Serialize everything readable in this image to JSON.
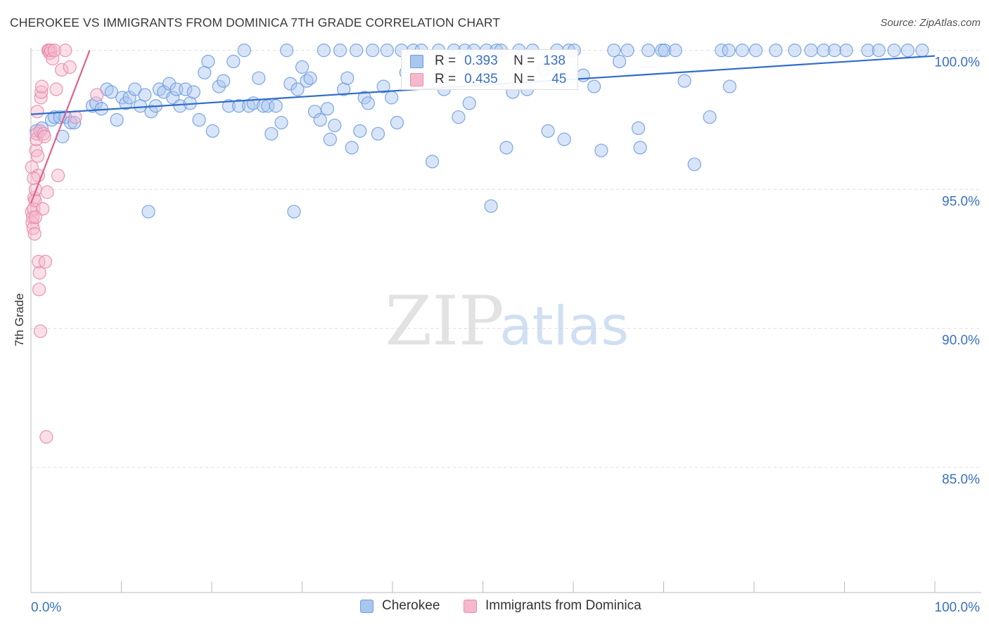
{
  "title": "CHEROKEE VS IMMIGRANTS FROM DOMINICA 7TH GRADE CORRELATION CHART",
  "source": "Source: ZipAtlas.com",
  "watermark": {
    "zip": "ZIP",
    "atlas": "atlas"
  },
  "colors": {
    "cherokee_fill": "#a9c6ef",
    "cherokee_stroke": "#6f9ce0",
    "cherokee_line": "#2f6cca",
    "dominica_fill": "#f5b8cc",
    "dominica_stroke": "#e88aaa",
    "dominica_line": "#e0608c",
    "axis_text": "#3a70c2",
    "grid": "#dcdcdc"
  },
  "stats": {
    "cherokee": {
      "r_label": "R =",
      "r": "0.393",
      "n_label": "N =",
      "n": "138"
    },
    "dominica": {
      "r_label": "R =",
      "r": "0.435",
      "n_label": "N =",
      "n": "45"
    }
  },
  "legend": {
    "cherokee": "Cherokee",
    "dominica": "Immigrants from Dominica"
  },
  "chart_data": {
    "type": "scatter",
    "title": "CHEROKEE VS IMMIGRANTS FROM DOMINICA 7TH GRADE CORRELATION CHART",
    "xlabel": "",
    "ylabel": "7th Grade",
    "xlim": [
      0,
      100
    ],
    "ylim": [
      80.5,
      100.8
    ],
    "x_tick_labels": [
      "0.0%",
      "100.0%"
    ],
    "y_ticks": [
      85,
      90,
      95,
      100
    ],
    "y_tick_labels": [
      "85.0%",
      "90.0%",
      "95.0%",
      "100.0%"
    ],
    "grid": true,
    "legend_position": "bottom-center",
    "series": [
      {
        "name": "Cherokee",
        "trend": {
          "x": [
            0,
            100
          ],
          "y": [
            97.7,
            99.8
          ]
        },
        "points": [
          [
            0.6,
            97.1
          ],
          [
            1.2,
            97.2
          ],
          [
            2.3,
            97.5
          ],
          [
            2.6,
            97.6
          ],
          [
            3.2,
            97.6
          ],
          [
            3.5,
            96.9
          ],
          [
            3.8,
            97.6
          ],
          [
            4.4,
            97.4
          ],
          [
            4.8,
            97.4
          ],
          [
            6.8,
            98.0
          ],
          [
            7.2,
            98.1
          ],
          [
            7.8,
            97.9
          ],
          [
            8.4,
            98.6
          ],
          [
            8.9,
            98.5
          ],
          [
            9.5,
            97.5
          ],
          [
            10.1,
            98.3
          ],
          [
            10.5,
            98.1
          ],
          [
            10.9,
            98.3
          ],
          [
            11.5,
            98.6
          ],
          [
            12.1,
            98.0
          ],
          [
            12.6,
            98.4
          ],
          [
            13.0,
            94.2
          ],
          [
            13.3,
            97.8
          ],
          [
            13.8,
            98.0
          ],
          [
            14.2,
            98.6
          ],
          [
            14.7,
            98.5
          ],
          [
            15.3,
            98.8
          ],
          [
            15.7,
            98.3
          ],
          [
            16.1,
            98.6
          ],
          [
            16.5,
            98.0
          ],
          [
            17.1,
            98.6
          ],
          [
            17.6,
            98.1
          ],
          [
            18.0,
            98.5
          ],
          [
            18.6,
            97.5
          ],
          [
            19.2,
            99.2
          ],
          [
            19.6,
            99.6
          ],
          [
            20.1,
            97.1
          ],
          [
            20.8,
            98.7
          ],
          [
            21.3,
            98.9
          ],
          [
            21.9,
            98.0
          ],
          [
            22.4,
            99.6
          ],
          [
            23.0,
            98.0
          ],
          [
            23.6,
            100.0
          ],
          [
            24.1,
            98.0
          ],
          [
            24.6,
            98.1
          ],
          [
            25.2,
            99.0
          ],
          [
            25.7,
            98.0
          ],
          [
            26.2,
            98.0
          ],
          [
            26.6,
            97.0
          ],
          [
            27.1,
            98.0
          ],
          [
            27.7,
            97.4
          ],
          [
            28.3,
            100.0
          ],
          [
            28.7,
            98.8
          ],
          [
            29.1,
            94.2
          ],
          [
            29.5,
            98.6
          ],
          [
            30.0,
            99.4
          ],
          [
            30.5,
            98.9
          ],
          [
            30.9,
            99.0
          ],
          [
            31.4,
            97.8
          ],
          [
            32.0,
            97.5
          ],
          [
            32.4,
            100.0
          ],
          [
            32.8,
            97.9
          ],
          [
            33.1,
            96.8
          ],
          [
            33.6,
            97.3
          ],
          [
            34.2,
            100.0
          ],
          [
            34.6,
            98.6
          ],
          [
            35.0,
            99.0
          ],
          [
            35.5,
            96.5
          ],
          [
            36.0,
            100.0
          ],
          [
            36.4,
            97.1
          ],
          [
            36.9,
            98.3
          ],
          [
            37.3,
            98.1
          ],
          [
            37.8,
            100.0
          ],
          [
            38.4,
            97.0
          ],
          [
            39.0,
            98.7
          ],
          [
            39.4,
            100.0
          ],
          [
            39.9,
            98.3
          ],
          [
            40.5,
            97.4
          ],
          [
            41.0,
            100.0
          ],
          [
            41.5,
            99.2
          ],
          [
            42.3,
            100.0
          ],
          [
            43.2,
            100.0
          ],
          [
            44.4,
            96.0
          ],
          [
            45.1,
            100.0
          ],
          [
            45.7,
            98.6
          ],
          [
            46.3,
            99.3
          ],
          [
            46.8,
            100.0
          ],
          [
            47.3,
            97.6
          ],
          [
            48.0,
            100.0
          ],
          [
            48.5,
            98.1
          ],
          [
            49.0,
            100.0
          ],
          [
            49.6,
            99.6
          ],
          [
            50.4,
            100.0
          ],
          [
            50.9,
            94.4
          ],
          [
            51.5,
            100.0
          ],
          [
            52.0,
            100.0
          ],
          [
            52.6,
            96.5
          ],
          [
            53.3,
            98.5
          ],
          [
            54.0,
            100.0
          ],
          [
            54.9,
            98.6
          ],
          [
            55.5,
            100.0
          ],
          [
            56.7,
            99.3
          ],
          [
            57.2,
            97.1
          ],
          [
            58.2,
            100.0
          ],
          [
            59.0,
            96.8
          ],
          [
            59.5,
            100.0
          ],
          [
            60.1,
            100.0
          ],
          [
            61.1,
            99.1
          ],
          [
            62.3,
            98.7
          ],
          [
            63.1,
            96.4
          ],
          [
            64.5,
            100.0
          ],
          [
            65.1,
            99.6
          ],
          [
            66.0,
            100.0
          ],
          [
            67.2,
            97.2
          ],
          [
            67.4,
            96.5
          ],
          [
            68.3,
            100.0
          ],
          [
            69.8,
            100.0
          ],
          [
            70.1,
            100.0
          ],
          [
            71.3,
            100.0
          ],
          [
            72.3,
            98.9
          ],
          [
            73.4,
            95.9
          ],
          [
            75.1,
            97.6
          ],
          [
            76.4,
            100.0
          ],
          [
            77.2,
            100.0
          ],
          [
            77.3,
            98.7
          ],
          [
            78.7,
            100.0
          ],
          [
            80.2,
            100.0
          ],
          [
            82.4,
            100.0
          ],
          [
            84.5,
            100.0
          ],
          [
            86.3,
            100.0
          ],
          [
            87.7,
            100.0
          ],
          [
            88.9,
            100.0
          ],
          [
            90.2,
            100.0
          ],
          [
            92.6,
            100.0
          ],
          [
            93.8,
            100.0
          ],
          [
            95.5,
            100.0
          ],
          [
            97.0,
            100.0
          ],
          [
            98.6,
            100.0
          ]
        ]
      },
      {
        "name": "Immigrants from Dominica",
        "trend": {
          "x": [
            0,
            6.5
          ],
          "y": [
            94.5,
            100.0
          ]
        },
        "points": [
          [
            0.1,
            95.8
          ],
          [
            0.1,
            94.2
          ],
          [
            0.15,
            93.8
          ],
          [
            0.2,
            94.0
          ],
          [
            0.25,
            93.6
          ],
          [
            0.3,
            94.3
          ],
          [
            0.35,
            94.7
          ],
          [
            0.4,
            93.4
          ],
          [
            0.45,
            94.6
          ],
          [
            0.5,
            95.0
          ],
          [
            0.55,
            96.4
          ],
          [
            0.6,
            96.8
          ],
          [
            0.65,
            97.0
          ],
          [
            0.7,
            97.8
          ],
          [
            0.75,
            96.2
          ],
          [
            0.8,
            95.5
          ],
          [
            0.85,
            92.4
          ],
          [
            0.9,
            91.4
          ],
          [
            0.95,
            92.0
          ],
          [
            1.0,
            97.1
          ],
          [
            1.05,
            89.9
          ],
          [
            1.1,
            98.3
          ],
          [
            1.15,
            98.5
          ],
          [
            1.2,
            98.7
          ],
          [
            1.3,
            94.3
          ],
          [
            1.4,
            97.0
          ],
          [
            1.5,
            96.9
          ],
          [
            1.6,
            92.4
          ],
          [
            1.7,
            86.1
          ],
          [
            1.8,
            94.9
          ],
          [
            1.9,
            100.0
          ],
          [
            2.0,
            100.0
          ],
          [
            2.1,
            99.9
          ],
          [
            2.2,
            100.0
          ],
          [
            2.4,
            99.7
          ],
          [
            2.6,
            100.0
          ],
          [
            2.8,
            98.6
          ],
          [
            3.0,
            95.5
          ],
          [
            3.4,
            99.3
          ],
          [
            3.8,
            100.0
          ],
          [
            4.3,
            99.4
          ],
          [
            4.9,
            97.6
          ],
          [
            0.3,
            95.4
          ],
          [
            0.5,
            94.0
          ],
          [
            7.3,
            98.4
          ]
        ]
      }
    ]
  }
}
